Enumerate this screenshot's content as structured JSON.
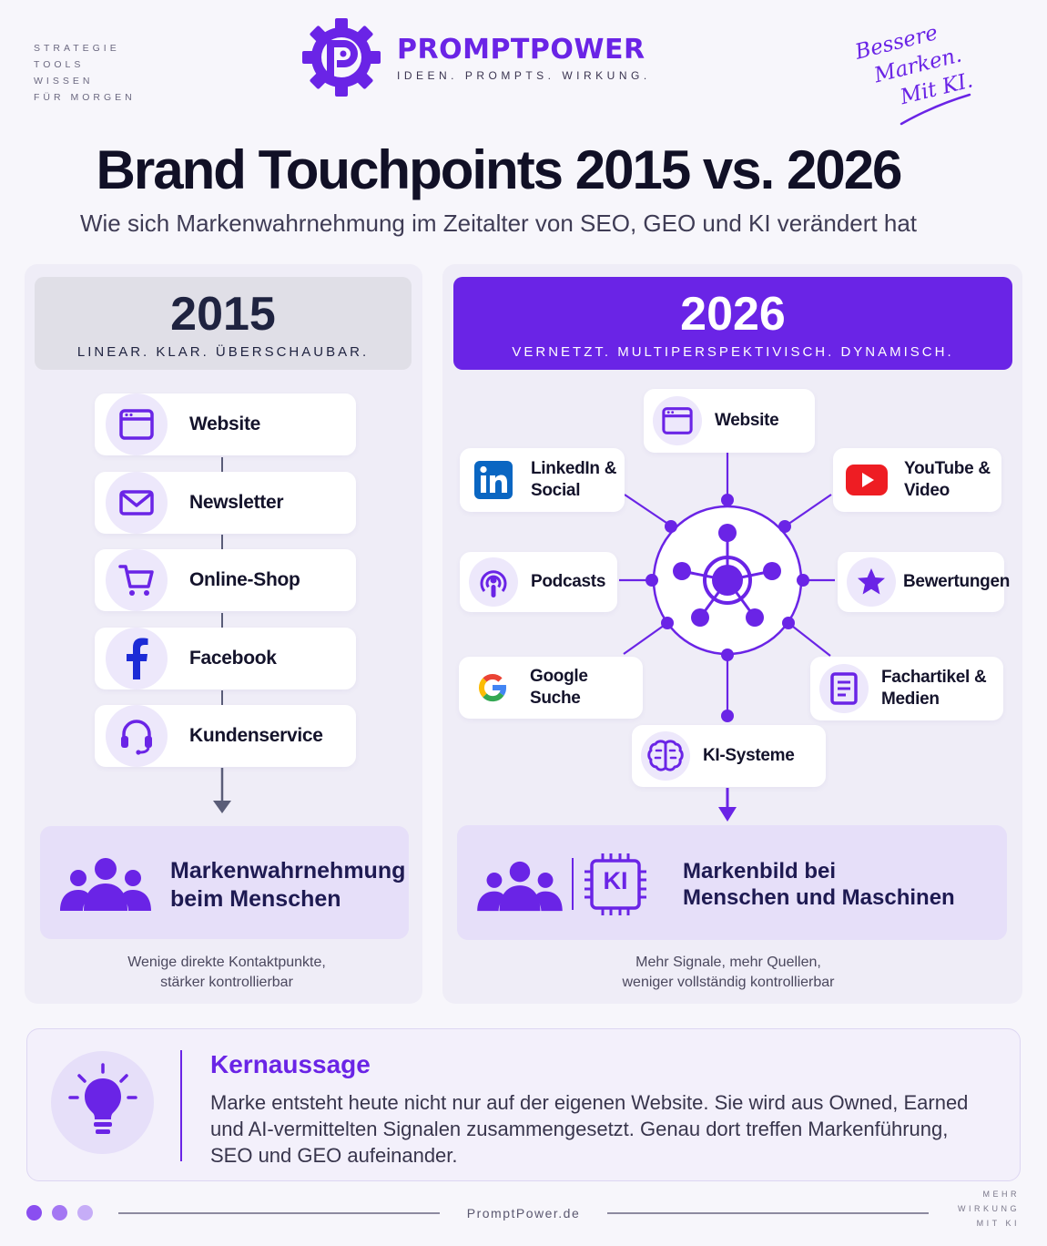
{
  "header": {
    "tagline_lines": [
      "STRATEGIE",
      "TOOLS",
      "WISSEN",
      "FÜR MORGEN"
    ],
    "brand_name": "PROMPTPOWER",
    "brand_subtitle": "IDEEN. PROMPTS. WIRKUNG.",
    "script_lines": [
      "Bessere",
      "Marken.",
      "Mit KI."
    ]
  },
  "title": "Brand Touchpoints 2015 vs. 2026",
  "subtitle": "Wie sich Markenwahrnehmung im Zeitalter von SEO, GEO und KI verändert hat",
  "left": {
    "year": "2015",
    "tagline": "LINEAR. KLAR. ÜBERSCHAUBAR.",
    "items": [
      {
        "label": "Website",
        "icon": "browser-window-icon"
      },
      {
        "label": "Newsletter",
        "icon": "envelope-icon"
      },
      {
        "label": "Online-Shop",
        "icon": "shopping-cart-icon"
      },
      {
        "label": "Facebook",
        "icon": "facebook-icon"
      },
      {
        "label": "Kundenservice",
        "icon": "headset-icon"
      }
    ],
    "outcome": {
      "line1": "Markenwahrnehmung",
      "line2": "beim Menschen",
      "icon": "people-group-icon"
    },
    "note_lines": [
      "Wenige direkte Kontaktpunkte,",
      "stärker kontrollierbar"
    ]
  },
  "right": {
    "year": "2026",
    "tagline": "VERNETZT. MULTIPERSPEKTIVISCH. DYNAMISCH.",
    "nodes": {
      "website": {
        "label": "Website",
        "icon": "browser-window-icon"
      },
      "linkedin": {
        "line1": "LinkedIn &",
        "line2": "Social",
        "icon": "linkedin-icon"
      },
      "youtube": {
        "line1": "YouTube &",
        "line2": "Video",
        "icon": "youtube-icon"
      },
      "podcasts": {
        "label": "Podcasts",
        "icon": "podcast-icon"
      },
      "bewertungen": {
        "label": "Bewertungen",
        "icon": "star-icon"
      },
      "google": {
        "label": "Google Suche",
        "icon": "google-icon"
      },
      "fachartikel": {
        "line1": "Fachartikel &",
        "line2": "Medien",
        "icon": "document-icon"
      },
      "ki": {
        "label": "KI-Systeme",
        "icon": "brain-icon"
      }
    },
    "hub_icon": "network-hub-icon",
    "outcome": {
      "line1": "Markenbild bei",
      "line2": "Menschen und Maschinen",
      "chip_label": "KI",
      "icon": "people-group-icon"
    },
    "note_lines": [
      "Mehr Signale, mehr Quellen,",
      "weniger vollständig kontrollierbar"
    ]
  },
  "kernaussage": {
    "title": "Kernaussage",
    "text": "Marke entsteht heute nicht nur auf der eigenen Website. Sie wird aus Owned, Earned und AI-vermittelten Signalen zusammengesetzt. Genau dort treffen Markenführung, SEO und GEO aufeinander.",
    "icon": "lightbulb-icon"
  },
  "footer": {
    "url": "PromptPower.de",
    "right_lines": [
      "MEHR",
      "WIRKUNG",
      "MIT KI"
    ]
  },
  "colors": {
    "accent": "#6a24e6",
    "accent_light": "#ede8fb",
    "dark": "#111026",
    "panel": "#efedf7"
  }
}
